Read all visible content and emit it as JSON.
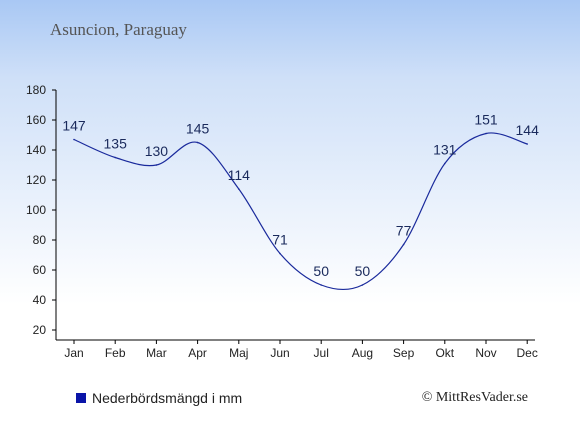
{
  "chart_data": {
    "type": "line",
    "title": "Asuncion, Paraguay",
    "categories": [
      "Jan",
      "Feb",
      "Mar",
      "Apr",
      "Maj",
      "Jun",
      "Jul",
      "Aug",
      "Sep",
      "Okt",
      "Nov",
      "Dec"
    ],
    "values": [
      147,
      135,
      130,
      145,
      114,
      71,
      50,
      50,
      77,
      131,
      151,
      144
    ],
    "ylim": [
      20,
      180
    ],
    "yticks": [
      20,
      40,
      60,
      80,
      100,
      120,
      140,
      160,
      180
    ],
    "legend": "Nederbördsmängd i mm",
    "line_color": "#1a2a9c",
    "swatch_color": "#0a14a8",
    "grid": false
  },
  "credit": "© MittResVader.se"
}
